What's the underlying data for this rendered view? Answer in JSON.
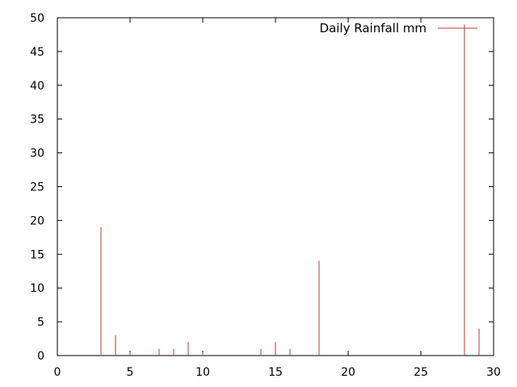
{
  "chart_data": {
    "type": "bar",
    "style": "impulses",
    "title": "",
    "xlabel": "",
    "ylabel": "",
    "xlim": [
      0,
      30
    ],
    "ylim": [
      0,
      50
    ],
    "xticks": [
      0,
      5,
      10,
      15,
      20,
      25,
      30
    ],
    "yticks": [
      0,
      5,
      10,
      15,
      20,
      25,
      30,
      35,
      40,
      45,
      50
    ],
    "grid": false,
    "legend_position": "top-right",
    "series": [
      {
        "name": "Daily Rainfall mm",
        "color": "#c0392b",
        "points": [
          {
            "x": 3,
            "y": 19
          },
          {
            "x": 4,
            "y": 3
          },
          {
            "x": 5,
            "y": 0.5
          },
          {
            "x": 7,
            "y": 1
          },
          {
            "x": 8,
            "y": 1
          },
          {
            "x": 9,
            "y": 2
          },
          {
            "x": 10,
            "y": 0.5
          },
          {
            "x": 14,
            "y": 1
          },
          {
            "x": 15,
            "y": 2
          },
          {
            "x": 16,
            "y": 1
          },
          {
            "x": 18,
            "y": 14
          },
          {
            "x": 28,
            "y": 49
          },
          {
            "x": 29,
            "y": 4
          }
        ]
      }
    ]
  }
}
